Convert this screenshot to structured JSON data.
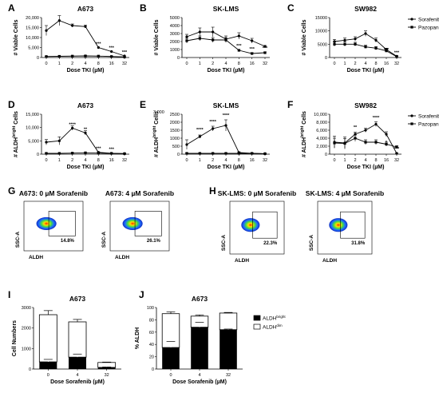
{
  "line_panels": [
    {
      "id": "A",
      "title": "A673",
      "ylabel": "# Viable Cells",
      "xlabel": "Dose TKI (µM)",
      "y_ticks": [
        "0",
        "5,000",
        "10,000",
        "15,000",
        "20,000"
      ],
      "ymax": 20000,
      "x_ticks": [
        "0",
        "1",
        "2",
        "4",
        "8",
        "16",
        "32"
      ],
      "series": [
        {
          "name": "Sorafenib",
          "marker": "circle",
          "values": [
            13500,
            18500,
            16000,
            15500,
            5000,
            3000,
            800
          ],
          "err": [
            2500,
            2500,
            800,
            700,
            0,
            0,
            0
          ]
        },
        {
          "name": "Pazopanib",
          "marker": "square",
          "values": [
            500,
            600,
            700,
            800,
            700,
            500,
            300
          ],
          "err": [
            200,
            200,
            200,
            200,
            200,
            150,
            100
          ]
        }
      ],
      "stars": [
        {
          "text": "***",
          "x": 4,
          "y": 5000
        },
        {
          "text": "***",
          "x": 5,
          "y": 3000
        },
        {
          "text": "***",
          "x": 6,
          "y": 800
        }
      ]
    },
    {
      "id": "B",
      "title": "SK-LMS",
      "ylabel": "# Viable Cells",
      "xlabel": "Dose TKI (µM)",
      "y_ticks": [
        "0",
        "1000",
        "2000",
        "3000",
        "4000",
        "5000"
      ],
      "ymax": 5000,
      "x_ticks": [
        "0",
        "1",
        "2",
        "4",
        "8",
        "16",
        "32"
      ],
      "series": [
        {
          "name": "Sorafenib",
          "marker": "circle",
          "values": [
            2600,
            3200,
            3200,
            2300,
            2700,
            2100,
            1400
          ],
          "err": [
            300,
            500,
            600,
            400,
            400,
            300,
            100
          ]
        },
        {
          "name": "Pazopanib",
          "marker": "square",
          "values": [
            2100,
            2400,
            2200,
            2200,
            900,
            500,
            600
          ],
          "err": [
            300,
            300,
            300,
            300,
            100,
            100,
            100
          ]
        }
      ],
      "stars": [
        {
          "text": "***",
          "x": 4,
          "y": 1000
        },
        {
          "text": "***",
          "x": 5,
          "y": 600
        },
        {
          "text": "***",
          "x": 6,
          "y": 700
        }
      ]
    },
    {
      "id": "C",
      "title": "SW982",
      "ylabel": "# Viable Cells",
      "xlabel": "Dose TKI (µM)",
      "y_ticks": [
        "0",
        "5000",
        "10000",
        "15000"
      ],
      "ymax": 15000,
      "x_ticks": [
        "0",
        "1",
        "2",
        "4",
        "8",
        "16",
        "32"
      ],
      "series": [
        {
          "name": "Sorafenib",
          "marker": "circle",
          "values": [
            6000,
            6500,
            7000,
            9000,
            6500,
            3000,
            500
          ],
          "err": [
            800,
            800,
            800,
            1000,
            800,
            500,
            200
          ]
        },
        {
          "name": "Pazopanib",
          "marker": "square",
          "values": [
            5000,
            5000,
            5000,
            4000,
            3500,
            2500,
            300
          ],
          "err": [
            800,
            800,
            700,
            600,
            600,
            400,
            100
          ]
        }
      ],
      "stars": [
        {
          "text": "***",
          "x": 5,
          "y": 1500
        },
        {
          "text": "***",
          "x": 6,
          "y": 500
        }
      ],
      "legend": [
        "Sorafenib",
        "Pazopanib"
      ]
    },
    {
      "id": "D",
      "title": "A673",
      "ylabel": "# ALDH",
      "ylabel_sup": "bright",
      "ylabel_tail": " Cells",
      "xlabel": "Dose TKI (µM)",
      "y_ticks": [
        "0",
        "5,000",
        "10,000",
        "15,000"
      ],
      "ymax": 15000,
      "x_ticks": [
        "0",
        "1",
        "2",
        "4",
        "8",
        "16",
        "32"
      ],
      "series": [
        {
          "name": "Sorafenib",
          "marker": "circle",
          "values": [
            4500,
            5000,
            9800,
            8000,
            700,
            300,
            200
          ],
          "err": [
            1000,
            1500,
            800,
            800,
            200,
            100,
            100
          ]
        },
        {
          "name": "Pazopanib",
          "marker": "square",
          "values": [
            300,
            300,
            400,
            500,
            400,
            300,
            200
          ],
          "err": [
            100,
            100,
            100,
            100,
            100,
            100,
            100
          ]
        }
      ],
      "stars": [
        {
          "text": "****",
          "x": 2,
          "y": 9800
        },
        {
          "text": "**",
          "x": 3,
          "y": 8000
        },
        {
          "text": "***",
          "x": 4,
          "y": 700
        },
        {
          "text": "***",
          "x": 5,
          "y": 400
        }
      ]
    },
    {
      "id": "E",
      "title": "SK-LMS",
      "ylabel": "# ALDH",
      "ylabel_sup": "bright",
      "ylabel_tail": " Cells",
      "xlabel": "Dose TKI (µM)",
      "y_ticks": [
        "0",
        "500",
        "1000",
        "1500",
        "2000",
        "2500"
      ],
      "ymax": 2500,
      "x_ticks": [
        "0",
        "1",
        "2",
        "4",
        "8",
        "16",
        "32"
      ],
      "extra_label": "3,000",
      "series": [
        {
          "name": "Sorafenib",
          "marker": "circle",
          "values": [
            600,
            1100,
            1600,
            1800,
            100,
            50,
            30
          ],
          "err": [
            300,
            100,
            150,
            350,
            50,
            30,
            20
          ]
        },
        {
          "name": "Pazopanib",
          "marker": "square",
          "values": [
            50,
            50,
            50,
            50,
            50,
            50,
            30
          ],
          "err": [
            20,
            20,
            20,
            20,
            20,
            20,
            10
          ]
        }
      ],
      "stars": [
        {
          "text": "****",
          "x": 1,
          "y": 1300
        },
        {
          "text": "****",
          "x": 2,
          "y": 1800
        },
        {
          "text": "****",
          "x": 3,
          "y": 2200
        }
      ]
    },
    {
      "id": "F",
      "title": "SW982",
      "ylabel": "# ALDH",
      "ylabel_sup": "bright",
      "ylabel_tail": " Cells",
      "xlabel": "Dose TKI (µM)",
      "y_ticks": [
        "0",
        "2,000",
        "4,000",
        "6,000",
        "8,000",
        "10,000"
      ],
      "ymax": 10000,
      "x_ticks": [
        "0",
        "1",
        "2",
        "4",
        "8",
        "16",
        "32"
      ],
      "series": [
        {
          "name": "Sorafenib",
          "marker": "circle",
          "values": [
            3000,
            2800,
            5000,
            6000,
            7500,
            5000,
            200
          ],
          "err": [
            1500,
            1500,
            500,
            500,
            600,
            600,
            100
          ]
        },
        {
          "name": "Pazopanib",
          "marker": "square",
          "values": [
            2800,
            2700,
            4000,
            3000,
            3000,
            2500,
            1800
          ],
          "err": [
            1200,
            1200,
            800,
            600,
            600,
            500,
            300
          ]
        }
      ],
      "stars": [
        {
          "text": "**",
          "x": 2,
          "y": 5800
        },
        {
          "text": "****",
          "x": 4,
          "y": 8200
        },
        {
          "text": "*",
          "x": 5,
          "y": 2000
        },
        {
          "text": "***",
          "x": 6,
          "y": 400
        }
      ],
      "legend": [
        "Sorafenib",
        "Pazopanib"
      ]
    }
  ],
  "flow_groups": [
    {
      "id": "G",
      "plots": [
        {
          "title": "A673: 0 µM Sorafenib",
          "pct": "14.8%"
        },
        {
          "title": "A673: 4 µM Sorafenib",
          "pct": "26.1%"
        }
      ],
      "ylabel": "SSC-A",
      "xlabel": "ALDH"
    },
    {
      "id": "H",
      "plots": [
        {
          "title": "SK-LMS: 0 µM Sorafenib",
          "pct": "22.3%"
        },
        {
          "title": "SK-LMS: 4 µM Sorafenib",
          "pct": "31.8%"
        }
      ],
      "ylabel": "SSC-A",
      "xlabel": "ALDH"
    }
  ],
  "bar_panels": [
    {
      "id": "I",
      "title": "A673",
      "ylabel": "Cell Numbers",
      "xlabel": "Dose Sorafenib (µM)",
      "y_ticks": [
        "0",
        "1000",
        "2000",
        "3000"
      ],
      "ymax": 3000,
      "categories": [
        "0",
        "4",
        "32"
      ],
      "series": [
        {
          "name": "ALDH bright",
          "values": [
            350,
            580,
            80
          ],
          "err": [
            120,
            150,
            20
          ]
        },
        {
          "name": "ALDH dim",
          "values": [
            2300,
            1720,
            240
          ],
          "err": [
            200,
            120,
            20
          ]
        }
      ]
    },
    {
      "id": "J",
      "title": "A673",
      "ylabel": "% ALDH",
      "xlabel": "Dose Sorafenib (µM)",
      "y_ticks": [
        "0",
        "20",
        "40",
        "60",
        "80",
        "100"
      ],
      "ymax": 100,
      "categories": [
        "0",
        "4",
        "32"
      ],
      "series": [
        {
          "name": "ALDH bright",
          "values": [
            35,
            68,
            64
          ],
          "err": [
            10,
            8,
            1
          ]
        },
        {
          "name": "ALDH dim",
          "values": [
            55,
            18,
            27
          ],
          "err": [
            3,
            2,
            1
          ]
        }
      ],
      "legend": [
        {
          "base": "ALDH",
          "sup": "bright"
        },
        {
          "base": "ALDH",
          "sup": "dim"
        }
      ]
    }
  ]
}
